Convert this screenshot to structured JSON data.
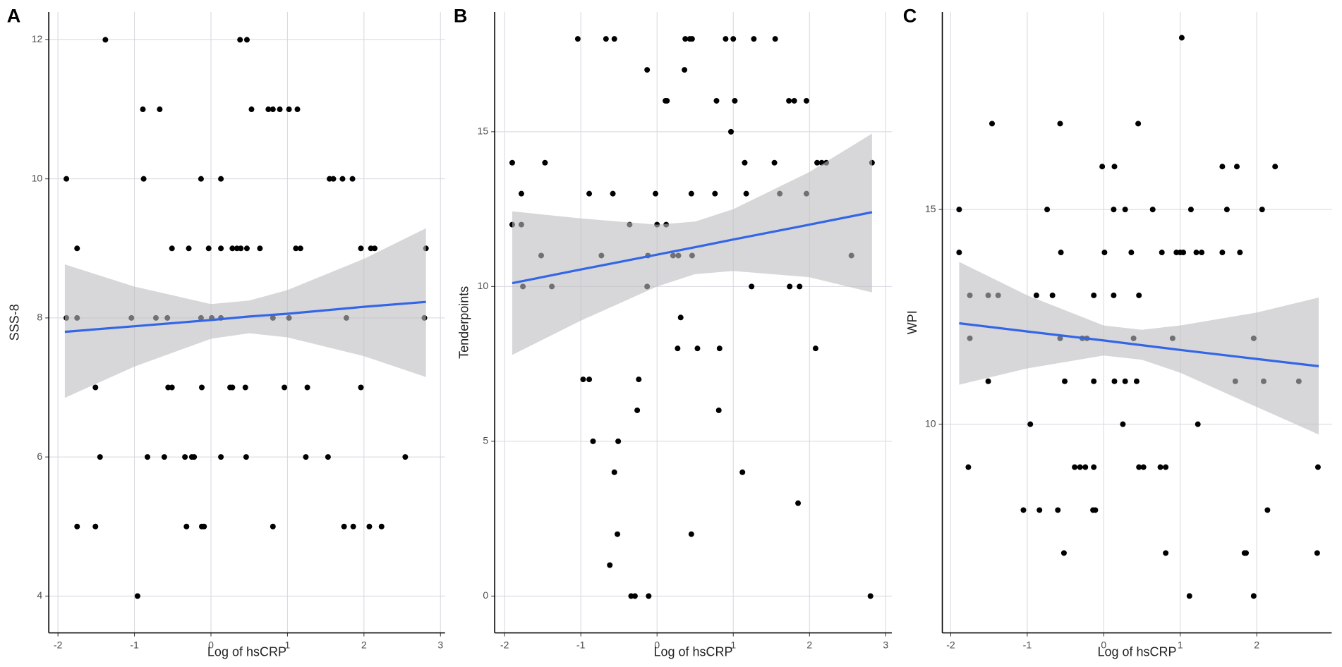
{
  "chart_data": [
    {
      "type": "scatter",
      "panel_label": "A",
      "x_label": "Log of hsCRP",
      "y_label": "SSS-8",
      "xlim": [
        -2.12,
        3.06
      ],
      "ylim": [
        3.47,
        12.4
      ],
      "xticks": [
        -2,
        -1,
        0,
        1,
        2,
        3
      ],
      "yticks": [
        4,
        6,
        8,
        10,
        12
      ],
      "grid": true,
      "color": "#000000",
      "x": [
        -1.38,
        0.38,
        0.47,
        -0.89,
        -0.67,
        0.53,
        0.75,
        0.81,
        0.9,
        1.02,
        1.13,
        -1.89,
        -0.88,
        -0.13,
        0.13,
        1.55,
        1.6,
        1.72,
        1.85,
        -1.75,
        -0.51,
        -0.29,
        -0.03,
        0.13,
        0.28,
        0.34,
        0.39,
        0.47,
        0.64,
        1.11,
        1.17,
        1.96,
        2.09,
        2.14,
        2.81,
        -1.89,
        -1.75,
        -1.04,
        -0.72,
        -0.57,
        -0.13,
        0.01,
        0.13,
        0.81,
        1.02,
        1.77,
        2.79,
        -1.51,
        -0.56,
        -0.51,
        -0.12,
        0.25,
        0.28,
        0.45,
        0.96,
        1.26,
        1.96,
        -1.45,
        -0.83,
        -0.61,
        -0.34,
        -0.25,
        -0.22,
        0.13,
        0.46,
        1.24,
        1.53,
        2.54,
        -1.75,
        -1.51,
        -0.32,
        -0.12,
        -0.09,
        0.81,
        1.74,
        1.86,
        2.07,
        2.23,
        -0.96
      ],
      "values": [
        12,
        12,
        12,
        11,
        11,
        11,
        11,
        11,
        11,
        11,
        11,
        10,
        10,
        10,
        10,
        10,
        10,
        10,
        10,
        9,
        9,
        9,
        9,
        9,
        9,
        9,
        9,
        9,
        9,
        9,
        9,
        9,
        9,
        9,
        9,
        8,
        8,
        8,
        8,
        8,
        8,
        8,
        8,
        8,
        8,
        8,
        8,
        7,
        7,
        7,
        7,
        7,
        7,
        7,
        7,
        7,
        7,
        6,
        6,
        6,
        6,
        6,
        6,
        6,
        6,
        6,
        6,
        6,
        5,
        5,
        5,
        5,
        5,
        5,
        5,
        5,
        5,
        5,
        4
      ],
      "fit": {
        "color": "#3366e6",
        "band_color": "#bdbdc2",
        "x": [
          -1.91,
          -1,
          0,
          0.5,
          1,
          2,
          2.81
        ],
        "values": [
          7.8,
          7.88,
          7.97,
          8.02,
          8.06,
          8.16,
          8.23
        ],
        "upper": [
          8.77,
          8.45,
          8.2,
          8.25,
          8.4,
          8.85,
          9.29
        ],
        "lower": [
          6.85,
          7.3,
          7.7,
          7.78,
          7.72,
          7.45,
          7.15
        ]
      }
    },
    {
      "type": "scatter",
      "panel_label": "B",
      "x_label": "Log of hsCRP",
      "y_label": "Tenderpoints",
      "xlim": [
        -2.13,
        3.08
      ],
      "ylim": [
        -1.19,
        18.87
      ],
      "xticks": [
        -2,
        -1,
        0,
        1,
        2,
        3
      ],
      "yticks": [
        0,
        5,
        10,
        15
      ],
      "grid": true,
      "color": "#000000",
      "x": [
        -1.04,
        -0.67,
        -0.56,
        0.37,
        0.43,
        0.46,
        0.9,
        1.0,
        1.27,
        1.55,
        -0.13,
        0.36,
        0.11,
        0.13,
        0.78,
        1.02,
        1.73,
        1.8,
        1.96,
        0.97,
        -1.9,
        -1.47,
        1.15,
        1.54,
        2.1,
        2.16,
        2.22,
        2.82,
        -1.78,
        -0.89,
        -0.58,
        -0.02,
        0.45,
        0.76,
        1.17,
        1.61,
        1.96,
        -1.9,
        -1.78,
        -0.36,
        0.0,
        0.12,
        -1.52,
        -0.73,
        -0.12,
        0.21,
        0.28,
        0.46,
        2.55,
        -1.76,
        -1.38,
        -0.13,
        1.24,
        1.74,
        1.87,
        0.31,
        0.27,
        0.53,
        0.82,
        2.08,
        -0.97,
        -0.89,
        -0.24,
        -0.26,
        0.81,
        -0.84,
        -0.51,
        -0.56,
        1.12,
        1.85,
        -0.52,
        0.45,
        -0.62,
        -0.34,
        -0.29,
        -0.11,
        2.8
      ],
      "values": [
        18,
        18,
        18,
        18,
        18,
        18,
        18,
        18,
        18,
        18,
        17,
        17,
        16,
        16,
        16,
        16,
        16,
        16,
        16,
        15,
        14,
        14,
        14,
        14,
        14,
        14,
        14,
        14,
        13,
        13,
        13,
        13,
        13,
        13,
        13,
        13,
        13,
        12,
        12,
        12,
        12,
        12,
        11,
        11,
        11,
        11,
        11,
        11,
        11,
        10,
        10,
        10,
        10,
        10,
        10,
        9,
        8,
        8,
        8,
        8,
        7,
        7,
        7,
        6,
        6,
        5,
        5,
        4,
        4,
        3,
        2,
        2,
        1,
        0,
        0,
        0,
        0
      ],
      "fit": {
        "color": "#3366e6",
        "band_color": "#bdbdc2",
        "x": [
          -1.9,
          -1,
          0,
          0.5,
          1,
          2,
          2.82
        ],
        "values": [
          10.11,
          10.55,
          11.03,
          11.27,
          11.52,
          12.0,
          12.4
        ],
        "upper": [
          12.43,
          12.2,
          12.0,
          12.1,
          12.5,
          13.7,
          14.94
        ],
        "lower": [
          7.79,
          8.9,
          10.0,
          10.4,
          10.5,
          10.3,
          9.81
        ]
      }
    },
    {
      "type": "scatter",
      "panel_label": "C",
      "x_label": "Log of hsCRP",
      "y_label": "WPI",
      "xlim": [
        -2.11,
        2.98
      ],
      "ylim": [
        5.14,
        19.6
      ],
      "xticks": [
        -2,
        -1,
        0,
        1,
        2
      ],
      "yticks": [
        10,
        15
      ],
      "grid": true,
      "color": "#000000",
      "x": [
        1.02,
        -1.46,
        -0.57,
        0.45,
        -0.02,
        0.14,
        1.55,
        1.74,
        2.24,
        -1.89,
        -0.74,
        0.13,
        0.28,
        0.64,
        1.14,
        1.61,
        2.07,
        -1.89,
        -0.56,
        0.01,
        0.36,
        0.76,
        0.95,
        1.0,
        1.04,
        1.21,
        1.28,
        1.55,
        1.78,
        -1.75,
        -1.51,
        -1.38,
        -0.88,
        -0.67,
        -0.13,
        0.13,
        0.46,
        -1.75,
        -0.57,
        -0.28,
        -0.22,
        0.39,
        0.9,
        1.96,
        -1.51,
        -0.51,
        -0.13,
        0.14,
        0.28,
        0.43,
        1.72,
        2.09,
        2.55,
        -0.96,
        0.25,
        1.23,
        -1.77,
        -0.38,
        -0.31,
        -0.24,
        -0.13,
        0.46,
        0.52,
        0.74,
        0.81,
        2.8,
        -1.05,
        -0.84,
        -0.6,
        -0.14,
        -0.11,
        2.14,
        -0.52,
        0.81,
        1.84,
        1.86,
        2.79,
        1.12,
        1.96
      ],
      "values": [
        19,
        17,
        17,
        17,
        16,
        16,
        16,
        16,
        16,
        15,
        15,
        15,
        15,
        15,
        15,
        15,
        15,
        14,
        14,
        14,
        14,
        14,
        14,
        14,
        14,
        14,
        14,
        14,
        14,
        13,
        13,
        13,
        13,
        13,
        13,
        13,
        13,
        12,
        12,
        12,
        12,
        12,
        12,
        12,
        11,
        11,
        11,
        11,
        11,
        11,
        11,
        11,
        11,
        10,
        10,
        10,
        9,
        9,
        9,
        9,
        9,
        9,
        9,
        9,
        9,
        9,
        8,
        8,
        8,
        8,
        8,
        8,
        7,
        7,
        7,
        7,
        7,
        6,
        6
      ],
      "fit": {
        "color": "#3366e6",
        "band_color": "#bdbdc2",
        "x": [
          -1.89,
          -1,
          0,
          0.5,
          1,
          2,
          2.81
        ],
        "values": [
          12.35,
          12.16,
          11.95,
          11.84,
          11.73,
          11.52,
          11.35
        ],
        "upper": [
          13.78,
          13.0,
          12.3,
          12.2,
          12.3,
          12.6,
          12.95
        ],
        "lower": [
          10.92,
          11.3,
          11.6,
          11.5,
          11.2,
          10.4,
          9.76
        ]
      }
    }
  ]
}
